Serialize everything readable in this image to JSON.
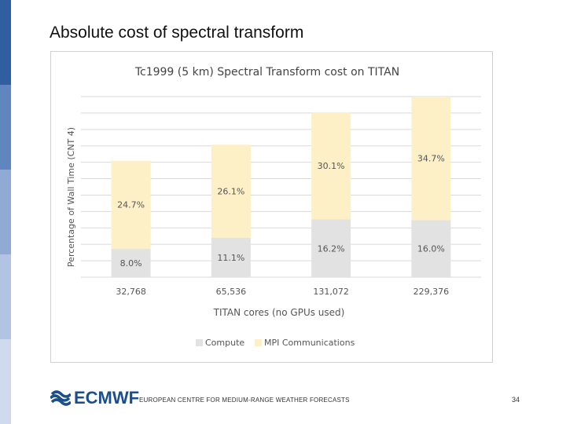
{
  "slide": {
    "title": "Absolute cost of spectral transform",
    "footer_org": "EUROPEAN CENTRE FOR MEDIUM-RANGE WEATHER FORECASTS",
    "logo_text": "ECMWF",
    "page_number": "34"
  },
  "colors": {
    "compute": "#e2e2e2",
    "mpi": "#fdf0c7",
    "sidebar": [
      "#2f5fa0",
      "#5f86be",
      "#8faad3",
      "#b2c4e3",
      "#cfdaee"
    ],
    "logo": "#1a4f8b"
  },
  "chart_data": {
    "type": "bar",
    "stacked": true,
    "title": "Tc1999 (5 km) Spectral Transform cost on TITAN",
    "xlabel": "TITAN cores (no GPUs used)",
    "ylabel": "Percentage of Wall Time (CNT 4)",
    "categories": [
      "32,768",
      "65,536",
      "131,072",
      "229,376"
    ],
    "series": [
      {
        "name": "Compute",
        "values": [
          8.0,
          11.1,
          16.2,
          16.0
        ],
        "labels": [
          "8.0%",
          "11.1%",
          "16.2%",
          "16.0%"
        ]
      },
      {
        "name": "MPI Communications",
        "values": [
          24.7,
          26.1,
          30.1,
          34.7
        ],
        "labels": [
          "24.7%",
          "26.1%",
          "30.1%",
          "34.7%"
        ]
      }
    ],
    "legend_position": "bottom",
    "grid": true
  }
}
